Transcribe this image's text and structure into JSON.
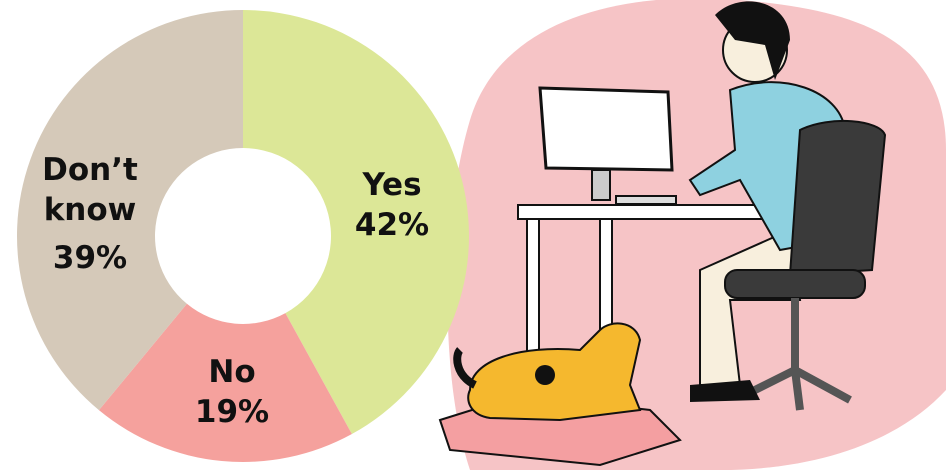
{
  "chart_data": {
    "type": "donut",
    "categories": [
      "Yes",
      "No",
      "Don’t know"
    ],
    "values": [
      42,
      19,
      39
    ],
    "value_labels": [
      "42%",
      "19%",
      "39%"
    ],
    "colors": [
      "#dce797",
      "#f5a19d",
      "#d5c9b9"
    ]
  }
}
